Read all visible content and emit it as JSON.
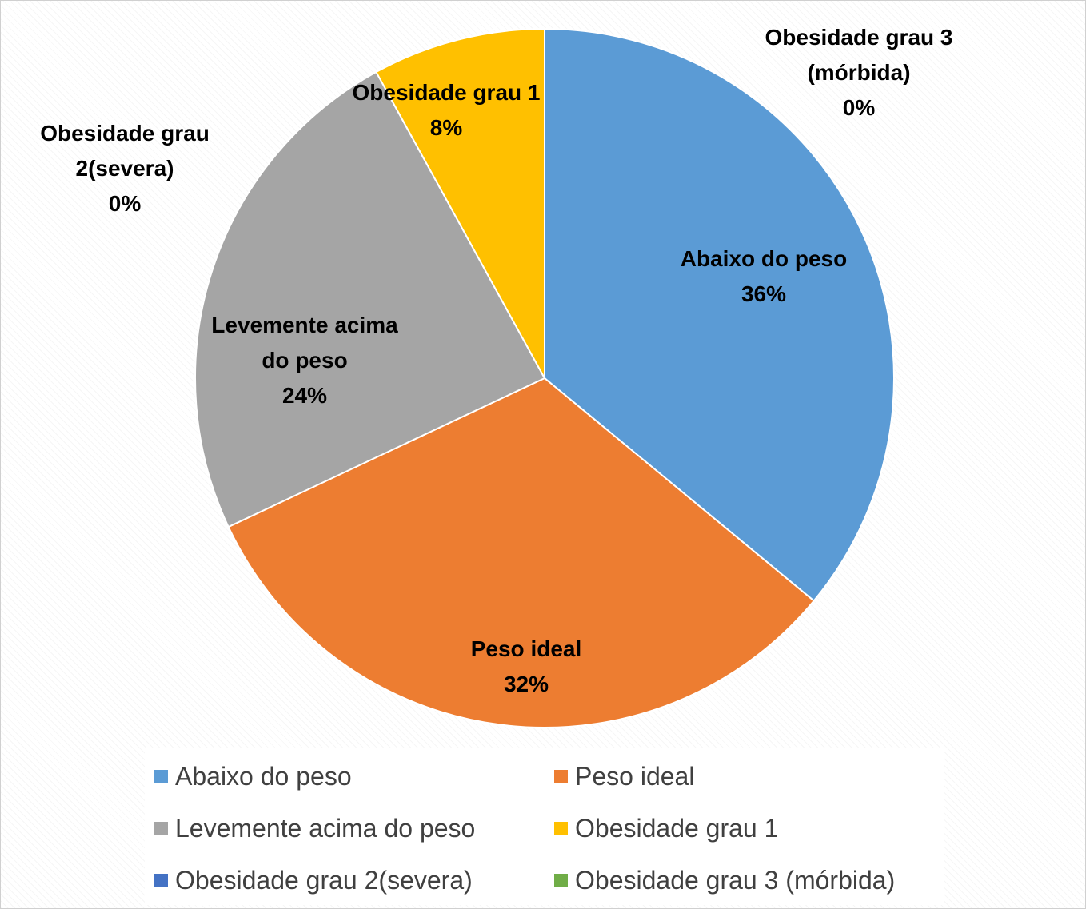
{
  "chart_data": {
    "type": "pie",
    "categories": [
      "Abaixo do peso",
      "Peso ideal",
      "Levemente acima do peso",
      "Obesidade grau 1",
      "Obesidade grau 2(severa)",
      "Obesidade grau 3 (mórbida)"
    ],
    "values": [
      36,
      32,
      24,
      8,
      0,
      0
    ],
    "value_labels": [
      "36%",
      "32%",
      "24%",
      "8%",
      "0%",
      "0%"
    ],
    "colors": [
      "#5b9bd5",
      "#ed7d31",
      "#a5a5a5",
      "#ffc000",
      "#4472c4",
      "#70ad47"
    ],
    "legend": "bottom"
  }
}
